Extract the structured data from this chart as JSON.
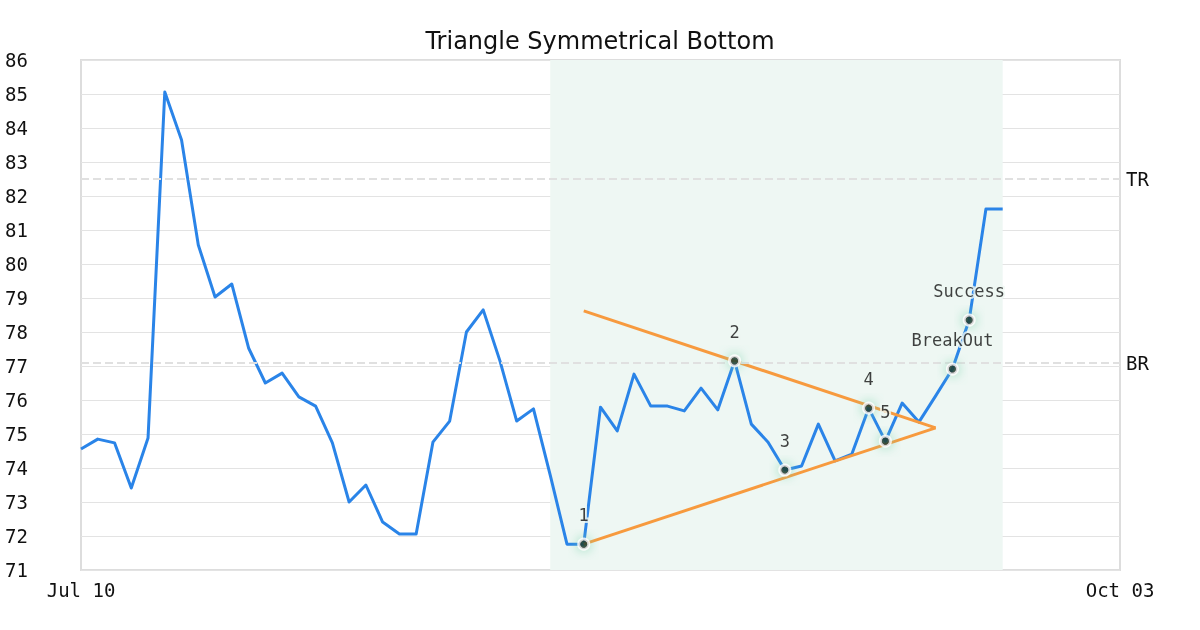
{
  "chart_data": {
    "type": "line",
    "title": "Triangle Symmetrical Bottom",
    "categories": [
      "Jul 10",
      null,
      null,
      null,
      null,
      null,
      null,
      null,
      null,
      null,
      null,
      null,
      null,
      null,
      null,
      null,
      null,
      null,
      null,
      null,
      null,
      null,
      null,
      null,
      null,
      null,
      null,
      null,
      null,
      null,
      null,
      null,
      null,
      null,
      null,
      null,
      null,
      null,
      null,
      null,
      null,
      null,
      null,
      null,
      null,
      null,
      null,
      null,
      null,
      null,
      null,
      null,
      null,
      null,
      null,
      null,
      null,
      null,
      null,
      null,
      null,
      null,
      "Oct 03"
    ],
    "ylim": [
      71,
      86
    ],
    "yticks": [
      71,
      72,
      73,
      74,
      75,
      76,
      77,
      78,
      79,
      80,
      81,
      82,
      83,
      84,
      85,
      86
    ],
    "grid": "y",
    "marker": "none",
    "line_style": "solid",
    "series": [
      {
        "color": "#2a84e8",
        "values": [
          74.56,
          74.85,
          74.74,
          73.41,
          74.88,
          85.06,
          83.65,
          80.56,
          79.03,
          79.41,
          77.53,
          76.5,
          76.79,
          76.09,
          75.82,
          74.74,
          73.0,
          73.5,
          72.41,
          72.06,
          72.06,
          74.76,
          75.38,
          78.0,
          78.65,
          77.15,
          75.38,
          75.74,
          73.79,
          71.76,
          71.76,
          75.79,
          75.09,
          76.76,
          75.82,
          75.82,
          75.68,
          76.35,
          75.71,
          77.15,
          75.29,
          74.76,
          73.94,
          74.06,
          75.29,
          74.21,
          74.41,
          75.76,
          74.79,
          75.91,
          75.35,
          76.12,
          76.91,
          78.35,
          81.62,
          81.62,
          null,
          null,
          null,
          null,
          null,
          null,
          null
        ]
      },
      {
        "color": "#f79a3e",
        "values": [
          null,
          null,
          null,
          null,
          null,
          null,
          null,
          null,
          null,
          null,
          null,
          null,
          null,
          null,
          null,
          null,
          null,
          null,
          null,
          null,
          null,
          null,
          null,
          null,
          null,
          null,
          null,
          null,
          null,
          null,
          78.62,
          null,
          null,
          null,
          null,
          null,
          null,
          null,
          null,
          null,
          null,
          null,
          null,
          null,
          null,
          null,
          null,
          null,
          null,
          null,
          null,
          75.18,
          null,
          null,
          null,
          null,
          null,
          null,
          null,
          null,
          null,
          null,
          null
        ]
      },
      {
        "color": "#f79a3e",
        "values": [
          null,
          null,
          null,
          null,
          null,
          null,
          null,
          null,
          null,
          null,
          null,
          null,
          null,
          null,
          null,
          null,
          null,
          null,
          null,
          null,
          null,
          null,
          null,
          null,
          null,
          null,
          null,
          null,
          null,
          null,
          71.76,
          null,
          null,
          null,
          null,
          null,
          null,
          null,
          null,
          null,
          null,
          null,
          null,
          null,
          null,
          null,
          null,
          null,
          null,
          null,
          null,
          75.18,
          null,
          null,
          null,
          null,
          null,
          null,
          null,
          null,
          null,
          null,
          null
        ]
      },
      {
        "type": "scatter",
        "marker": "circle",
        "color": "#000000",
        "values": [
          null,
          null,
          null,
          null,
          null,
          null,
          null,
          null,
          null,
          null,
          null,
          null,
          null,
          null,
          null,
          null,
          null,
          null,
          null,
          null,
          null,
          null,
          null,
          null,
          null,
          null,
          null,
          null,
          null,
          null,
          71.76,
          null,
          null,
          null,
          null,
          null,
          null,
          null,
          null,
          77.15,
          null,
          null,
          73.94,
          null,
          null,
          null,
          null,
          75.76,
          74.79,
          null,
          null,
          null,
          76.91,
          78.35,
          null,
          null,
          null,
          null,
          null,
          null,
          null,
          null,
          null
        ]
      }
    ],
    "annotations": [
      "1",
      "2",
      "3",
      "4",
      "5",
      "BreakOut",
      "Success"
    ],
    "ref_lines": [
      {
        "axis": "y",
        "value": 82.5,
        "label": "TR",
        "color": "#e0e0e0",
        "line_style": "dashed"
      },
      {
        "axis": "y",
        "value": 77.1,
        "label": "BR",
        "color": "#e0e0e0",
        "line_style": "dashed"
      }
    ]
  }
}
